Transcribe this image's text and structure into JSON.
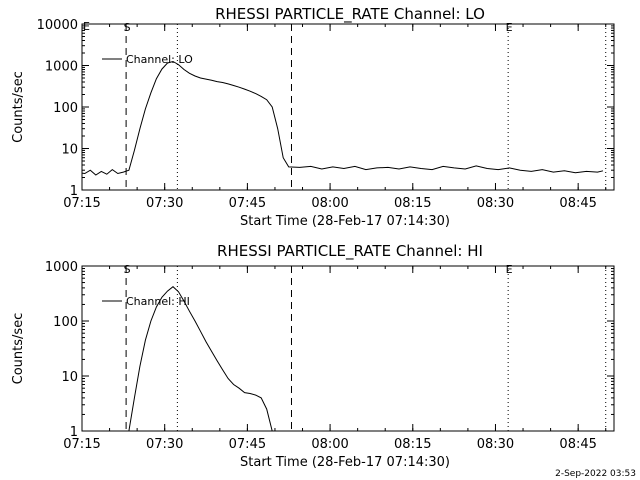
{
  "footer": {
    "timestamp": "2-Sep-2022 03:53"
  },
  "chart_data": [
    {
      "type": "line",
      "title": "RHESSI PARTICLE_RATE Channel: LO",
      "ylabel": "Counts/sec",
      "xlabel": "Start Time (28-Feb-17 07:14:30)",
      "x_unit": "minutes after 07:14:30",
      "xlim": [
        0.5,
        97
      ],
      "ylim": [
        1,
        10000
      ],
      "yscale": "log",
      "x_ticks": [
        {
          "x": 0.5,
          "label": "07:15"
        },
        {
          "x": 15.5,
          "label": "07:30"
        },
        {
          "x": 30.5,
          "label": "07:45"
        },
        {
          "x": 45.5,
          "label": "08:00"
        },
        {
          "x": 60.5,
          "label": "08:15"
        },
        {
          "x": 75.5,
          "label": "08:30"
        },
        {
          "x": 90.5,
          "label": "08:45"
        }
      ],
      "y_ticks": [
        {
          "y": 1,
          "label": "1"
        },
        {
          "y": 10,
          "label": "10"
        },
        {
          "y": 100,
          "label": "100"
        },
        {
          "y": 1000,
          "label": "1000"
        },
        {
          "y": 10000,
          "label": "10000"
        }
      ],
      "markers": [
        {
          "x": 8.5,
          "style": "dashed",
          "label": "S"
        },
        {
          "x": 17.8,
          "style": "dotted",
          "label": ""
        },
        {
          "x": 38.5,
          "style": "dashed",
          "label": ""
        },
        {
          "x": 77.8,
          "style": "dotted",
          "label": "E"
        },
        {
          "x": 95.5,
          "style": "dotted",
          "label": ""
        }
      ],
      "corner_labels": [
        "E"
      ],
      "legend": {
        "label": "Channel: LO",
        "position": "top-left"
      },
      "series": [
        {
          "name": "Channel: LO",
          "points": [
            [
              0,
              2.6
            ],
            [
              1,
              2.5
            ],
            [
              2,
              3.0
            ],
            [
              3,
              2.3
            ],
            [
              4,
              2.8
            ],
            [
              5,
              2.4
            ],
            [
              6,
              3.1
            ],
            [
              7,
              2.5
            ],
            [
              8,
              2.7
            ],
            [
              9,
              3.0
            ],
            [
              10,
              9
            ],
            [
              11,
              30
            ],
            [
              12,
              90
            ],
            [
              13,
              220
            ],
            [
              14,
              480
            ],
            [
              15,
              820
            ],
            [
              16,
              1150
            ],
            [
              17,
              1250
            ],
            [
              18,
              1050
            ],
            [
              19,
              800
            ],
            [
              20,
              650
            ],
            [
              21,
              560
            ],
            [
              22,
              500
            ],
            [
              23,
              470
            ],
            [
              24,
              440
            ],
            [
              25,
              410
            ],
            [
              26,
              390
            ],
            [
              27,
              360
            ],
            [
              28,
              330
            ],
            [
              29,
              300
            ],
            [
              30,
              270
            ],
            [
              31,
              240
            ],
            [
              32,
              210
            ],
            [
              33,
              180
            ],
            [
              34,
              150
            ],
            [
              35,
              100
            ],
            [
              36,
              30
            ],
            [
              37,
              6
            ],
            [
              38,
              3.6
            ],
            [
              40,
              3.5
            ],
            [
              42,
              3.7
            ],
            [
              44,
              3.2
            ],
            [
              46,
              3.6
            ],
            [
              48,
              3.3
            ],
            [
              50,
              3.7
            ],
            [
              52,
              3.1
            ],
            [
              54,
              3.4
            ],
            [
              56,
              3.5
            ],
            [
              58,
              3.2
            ],
            [
              60,
              3.6
            ],
            [
              62,
              3.3
            ],
            [
              64,
              3.1
            ],
            [
              66,
              3.7
            ],
            [
              68,
              3.4
            ],
            [
              70,
              3.2
            ],
            [
              72,
              3.8
            ],
            [
              74,
              3.3
            ],
            [
              76,
              3.1
            ],
            [
              78,
              3.4
            ],
            [
              80,
              3.0
            ],
            [
              82,
              2.8
            ],
            [
              84,
              3.1
            ],
            [
              86,
              2.7
            ],
            [
              88,
              2.9
            ],
            [
              90,
              2.6
            ],
            [
              92,
              2.8
            ],
            [
              94,
              2.7
            ],
            [
              95,
              2.9
            ]
          ]
        }
      ]
    },
    {
      "type": "line",
      "title": "RHESSI PARTICLE_RATE Channel: HI",
      "ylabel": "Counts/sec",
      "xlabel": "Start Time (28-Feb-17 07:14:30)",
      "x_unit": "minutes after 07:14:30",
      "xlim": [
        0.5,
        97
      ],
      "ylim": [
        1,
        1000
      ],
      "yscale": "log",
      "x_ticks": [
        {
          "x": 0.5,
          "label": "07:15"
        },
        {
          "x": 15.5,
          "label": "07:30"
        },
        {
          "x": 30.5,
          "label": "07:45"
        },
        {
          "x": 45.5,
          "label": "08:00"
        },
        {
          "x": 60.5,
          "label": "08:15"
        },
        {
          "x": 75.5,
          "label": "08:30"
        },
        {
          "x": 90.5,
          "label": "08:45"
        }
      ],
      "y_ticks": [
        {
          "y": 1,
          "label": "1"
        },
        {
          "y": 10,
          "label": "10"
        },
        {
          "y": 100,
          "label": "100"
        },
        {
          "y": 1000,
          "label": "1000"
        }
      ],
      "markers": [
        {
          "x": 8.5,
          "style": "dashed",
          "label": "S"
        },
        {
          "x": 17.8,
          "style": "dotted",
          "label": ""
        },
        {
          "x": 38.5,
          "style": "dashed",
          "label": ""
        },
        {
          "x": 77.8,
          "style": "dotted",
          "label": "E"
        },
        {
          "x": 95.5,
          "style": "dotted",
          "label": ""
        }
      ],
      "corner_labels": [],
      "legend": {
        "label": "Channel: HI",
        "position": "top-left"
      },
      "series": [
        {
          "name": "Channel: HI",
          "points": [
            [
              9,
              1.0
            ],
            [
              10,
              4
            ],
            [
              11,
              15
            ],
            [
              12,
              45
            ],
            [
              13,
              100
            ],
            [
              14,
              180
            ],
            [
              15,
              270
            ],
            [
              16,
              350
            ],
            [
              17,
              420
            ],
            [
              18,
              340
            ],
            [
              19,
              230
            ],
            [
              20,
              150
            ],
            [
              21,
              100
            ],
            [
              22,
              65
            ],
            [
              23,
              42
            ],
            [
              24,
              28
            ],
            [
              25,
              19
            ],
            [
              26,
              13
            ],
            [
              27,
              9
            ],
            [
              28,
              7
            ],
            [
              29,
              6
            ],
            [
              30,
              5
            ],
            [
              31,
              4.8
            ],
            [
              32,
              4.5
            ],
            [
              33,
              4.0
            ],
            [
              34,
              2.5
            ],
            [
              35,
              1.0
            ]
          ]
        }
      ]
    }
  ]
}
